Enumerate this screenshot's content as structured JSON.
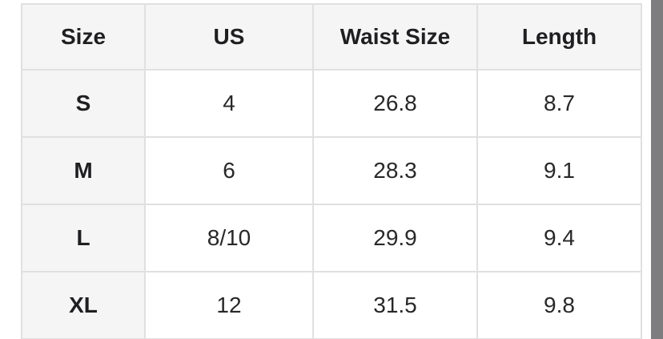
{
  "table": {
    "columns": [
      {
        "label": "Size"
      },
      {
        "label": "US"
      },
      {
        "label": "Waist Size"
      },
      {
        "label": "Length"
      }
    ],
    "rows": [
      {
        "size": "S",
        "us": "4",
        "waist": "26.8",
        "length": "8.7"
      },
      {
        "size": "M",
        "us": "6",
        "waist": "28.3",
        "length": "9.1"
      },
      {
        "size": "L",
        "us": "8/10",
        "waist": "29.9",
        "length": "9.4"
      },
      {
        "size": "XL",
        "us": "12",
        "waist": "31.5",
        "length": "9.8"
      }
    ]
  },
  "colors": {
    "page-bg": "#ffffff",
    "header-bg": "#f5f5f6",
    "cell-bg": "#ffffff",
    "border-color": "#e0e0e1",
    "header-text": "#1f1f21",
    "cell-text": "#28282a",
    "scrollbar-color": "#7d7d7f"
  }
}
